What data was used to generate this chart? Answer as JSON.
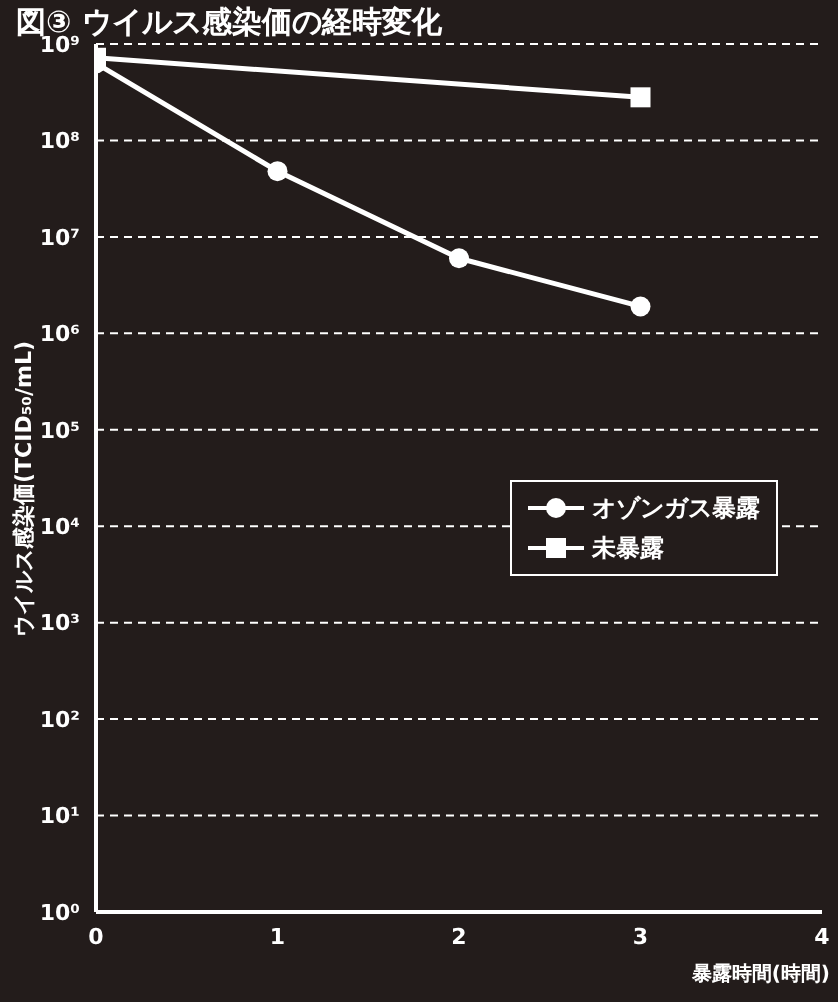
{
  "chart_data": {
    "type": "line",
    "title": "図③ ウイルス感染価の経時変化",
    "xlabel": "暴露時間(時間)",
    "ylabel": "ウイルス感染価(TCID₅₀/mL)",
    "x": [
      0,
      1,
      2,
      3
    ],
    "series": [
      {
        "name": "オゾンガス暴露",
        "color": "#ffffff",
        "values": [
          630000000,
          48000000,
          6000000,
          1900000
        ],
        "marker": "circle"
      },
      {
        "name": "未暴露",
        "color": "#ffffff",
        "x": [
          0,
          3
        ],
        "values": [
          720000000,
          280000000
        ],
        "marker": "square"
      }
    ],
    "log": "y",
    "xlim": [
      0,
      4
    ],
    "xticks": [
      0,
      1,
      2,
      3,
      4
    ],
    "ylim": [
      1,
      1000000000
    ],
    "yticks": [
      {
        "value": 1,
        "label": "10⁰"
      },
      {
        "value": 10,
        "label": "10¹"
      },
      {
        "value": 100,
        "label": "10²"
      },
      {
        "value": 1000,
        "label": "10³"
      },
      {
        "value": 10000,
        "label": "10⁴"
      },
      {
        "value": 100000,
        "label": "10⁵"
      },
      {
        "value": 1000000,
        "label": "10⁶"
      },
      {
        "value": 10000000,
        "label": "10⁷"
      },
      {
        "value": 100000000,
        "label": "10⁸"
      },
      {
        "value": 1000000000,
        "label": "10⁹"
      }
    ],
    "grid": "y",
    "legend": "right",
    "line_style": "solid"
  }
}
